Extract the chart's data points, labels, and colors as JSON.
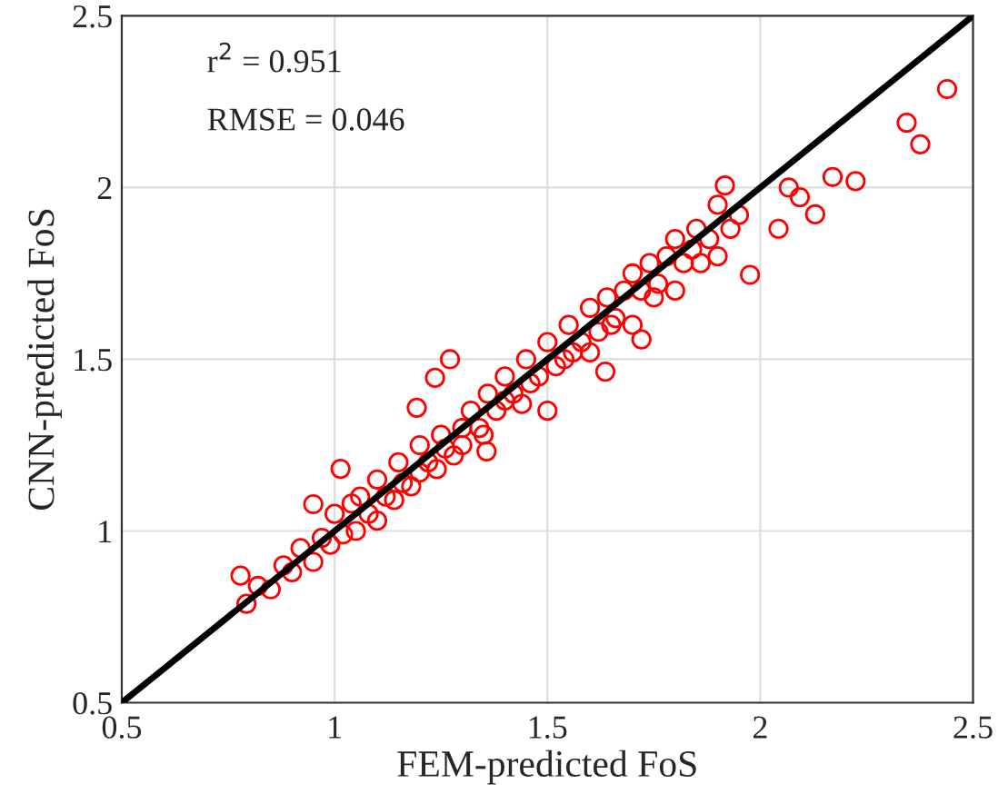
{
  "chart_data": {
    "type": "scatter",
    "xlabel": "FEM-predicted FoS",
    "ylabel": "CNN-predicted FoS",
    "xlim": [
      0.5,
      2.5
    ],
    "ylim": [
      0.5,
      2.5
    ],
    "xticks": [
      0.5,
      1,
      1.5,
      2,
      2.5
    ],
    "yticks": [
      0.5,
      1,
      1.5,
      2,
      2.5
    ],
    "grid": true,
    "annotations": [
      "r$^{2}$ = 0.951",
      "RMSE = 0.046"
    ],
    "series": [
      {
        "marker": "circle",
        "color": "#ff0000",
        "x": [
          0.779,
          0.793,
          0.82,
          0.85,
          0.88,
          0.9,
          0.92,
          0.95,
          0.95,
          0.97,
          0.99,
          1.0,
          1.014,
          1.02,
          1.04,
          1.05,
          1.06,
          1.08,
          1.1,
          1.1,
          1.12,
          1.14,
          1.15,
          1.16,
          1.18,
          1.193,
          1.2,
          1.2,
          1.22,
          1.236,
          1.24,
          1.25,
          1.26,
          1.271,
          1.28,
          1.3,
          1.3,
          1.32,
          1.34,
          1.35,
          1.357,
          1.36,
          1.38,
          1.4,
          1.4,
          1.42,
          1.44,
          1.45,
          1.46,
          1.48,
          1.5,
          1.5,
          1.52,
          1.54,
          1.55,
          1.56,
          1.58,
          1.6,
          1.6,
          1.62,
          1.636,
          1.64,
          1.65,
          1.66,
          1.68,
          1.7,
          1.7,
          1.721,
          1.72,
          1.74,
          1.75,
          1.76,
          1.78,
          1.8,
          1.8,
          1.82,
          1.84,
          1.85,
          1.86,
          1.88,
          1.9,
          1.9,
          1.917,
          1.93,
          1.95,
          1.976,
          2.043,
          2.067,
          2.093,
          2.129,
          2.17,
          2.224,
          2.344,
          2.376,
          2.439
        ],
        "values": [
          0.87,
          0.788,
          0.84,
          0.83,
          0.9,
          0.88,
          0.95,
          0.91,
          1.078,
          0.98,
          0.96,
          1.05,
          1.181,
          0.99,
          1.08,
          1.0,
          1.1,
          1.05,
          1.03,
          1.15,
          1.1,
          1.09,
          1.2,
          1.14,
          1.13,
          1.359,
          1.17,
          1.25,
          1.2,
          1.446,
          1.18,
          1.28,
          1.24,
          1.5,
          1.22,
          1.3,
          1.25,
          1.35,
          1.3,
          1.28,
          1.232,
          1.4,
          1.35,
          1.38,
          1.45,
          1.4,
          1.37,
          1.5,
          1.43,
          1.45,
          1.35,
          1.55,
          1.48,
          1.5,
          1.6,
          1.52,
          1.55,
          1.52,
          1.65,
          1.58,
          1.464,
          1.68,
          1.6,
          1.62,
          1.7,
          1.6,
          1.75,
          1.558,
          1.7,
          1.78,
          1.68,
          1.72,
          1.8,
          1.7,
          1.85,
          1.78,
          1.82,
          1.88,
          1.78,
          1.85,
          1.8,
          1.95,
          2.006,
          1.88,
          1.92,
          1.746,
          1.88,
          2.0,
          1.972,
          1.922,
          2.031,
          2.019,
          2.189,
          2.126,
          2.287
        ]
      },
      {
        "type": "line",
        "marker": "none",
        "color": "#000000",
        "x": [
          0.5,
          2.5
        ],
        "values": [
          0.5,
          2.5
        ]
      }
    ]
  }
}
